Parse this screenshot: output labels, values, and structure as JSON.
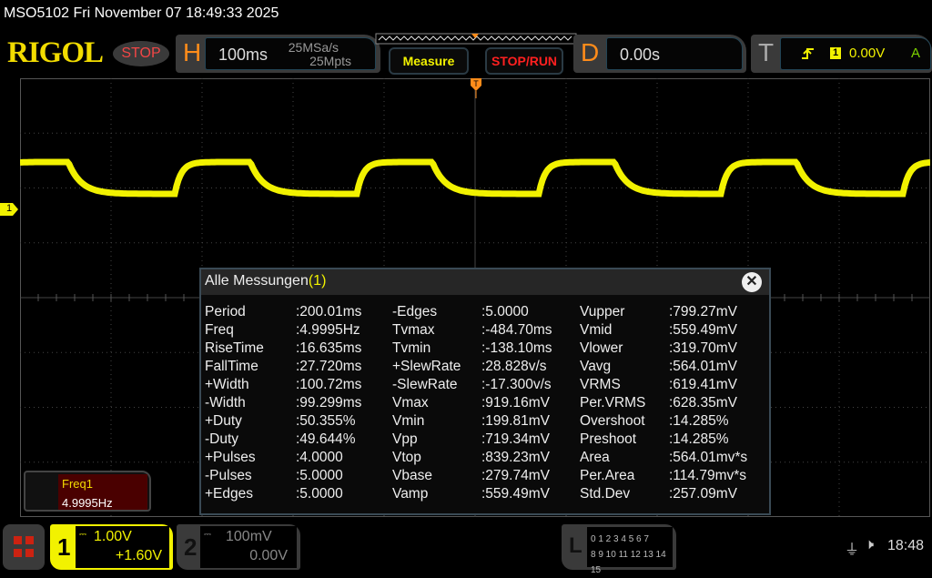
{
  "title": "MSO5102  Fri November 07 18:49:33 2025",
  "logo": "RIGOL",
  "run_state": "STOP",
  "horizontal": {
    "letter": "H",
    "timebase": "100ms",
    "sample_rate": "25MSa/s",
    "memory_depth": "25Mpts"
  },
  "buttons": {
    "measure": "Measure",
    "stop_run": "STOP/RUN"
  },
  "delay": {
    "letter": "D",
    "value": "0.00s"
  },
  "trigger": {
    "letter": "T",
    "source": "1",
    "level": "0.00V",
    "mode": "A",
    "slope_icon": "rising-edge-icon"
  },
  "channel_marker": "1",
  "measurements": {
    "title": "Alle Messungen",
    "title_suffix": "(1)",
    "close": "✕",
    "columns": [
      [
        [
          "Period",
          ":200.01ms"
        ],
        [
          "Freq",
          ":4.9995Hz"
        ],
        [
          "RiseTime",
          ":16.635ms"
        ],
        [
          "FallTime",
          ":27.720ms"
        ],
        [
          "+Width",
          ":100.72ms"
        ],
        [
          "-Width",
          ":99.299ms"
        ],
        [
          "+Duty",
          ":50.355%"
        ],
        [
          "-Duty",
          ":49.644%"
        ],
        [
          "+Pulses",
          ":4.0000"
        ],
        [
          "-Pulses",
          ":5.0000"
        ],
        [
          "+Edges",
          ":5.0000"
        ]
      ],
      [
        [
          "-Edges",
          ":5.0000"
        ],
        [
          "Tvmax",
          ":-484.70ms"
        ],
        [
          "Tvmin",
          ":-138.10ms"
        ],
        [
          "+SlewRate",
          ":28.828v/s"
        ],
        [
          "-SlewRate",
          ":-17.300v/s"
        ],
        [
          "Vmax",
          ":919.16mV"
        ],
        [
          "Vmin",
          ":199.81mV"
        ],
        [
          "Vpp",
          ":719.34mV"
        ],
        [
          "Vtop",
          ":839.23mV"
        ],
        [
          "Vbase",
          ":279.74mV"
        ],
        [
          "Vamp",
          ":559.49mV"
        ]
      ],
      [
        [
          "Vupper",
          ":799.27mV"
        ],
        [
          "Vmid",
          ":559.49mV"
        ],
        [
          "Vlower",
          ":319.70mV"
        ],
        [
          "Vavg",
          ":564.01mV"
        ],
        [
          "VRMS",
          ":619.41mV"
        ],
        [
          "Per.VRMS",
          ":628.35mV"
        ],
        [
          "Overshoot",
          ":14.285%"
        ],
        [
          "Preshoot",
          ":14.285%"
        ],
        [
          "Area",
          ":564.01mv*s"
        ],
        [
          "Per.Area",
          ":114.79mv*s"
        ],
        [
          "Std.Dev",
          ":257.09mV"
        ]
      ]
    ]
  },
  "freq_readout": {
    "label": "Freq1",
    "value": "4.9995Hz"
  },
  "ch1": {
    "num": "1",
    "scale": "1.00V",
    "offset": "+1.60V",
    "color": "#f2f200"
  },
  "ch2": {
    "num": "2",
    "scale": "100mV",
    "offset": "0.00V"
  },
  "logic": {
    "letter": "L",
    "row1": "0 1 2 3  4 5 6 7",
    "row2": "8 9 10 11 12 13 14 15"
  },
  "status": {
    "time": "18:48",
    "usb_icon": "usb-icon",
    "sound_icon": "mute-icon"
  }
}
